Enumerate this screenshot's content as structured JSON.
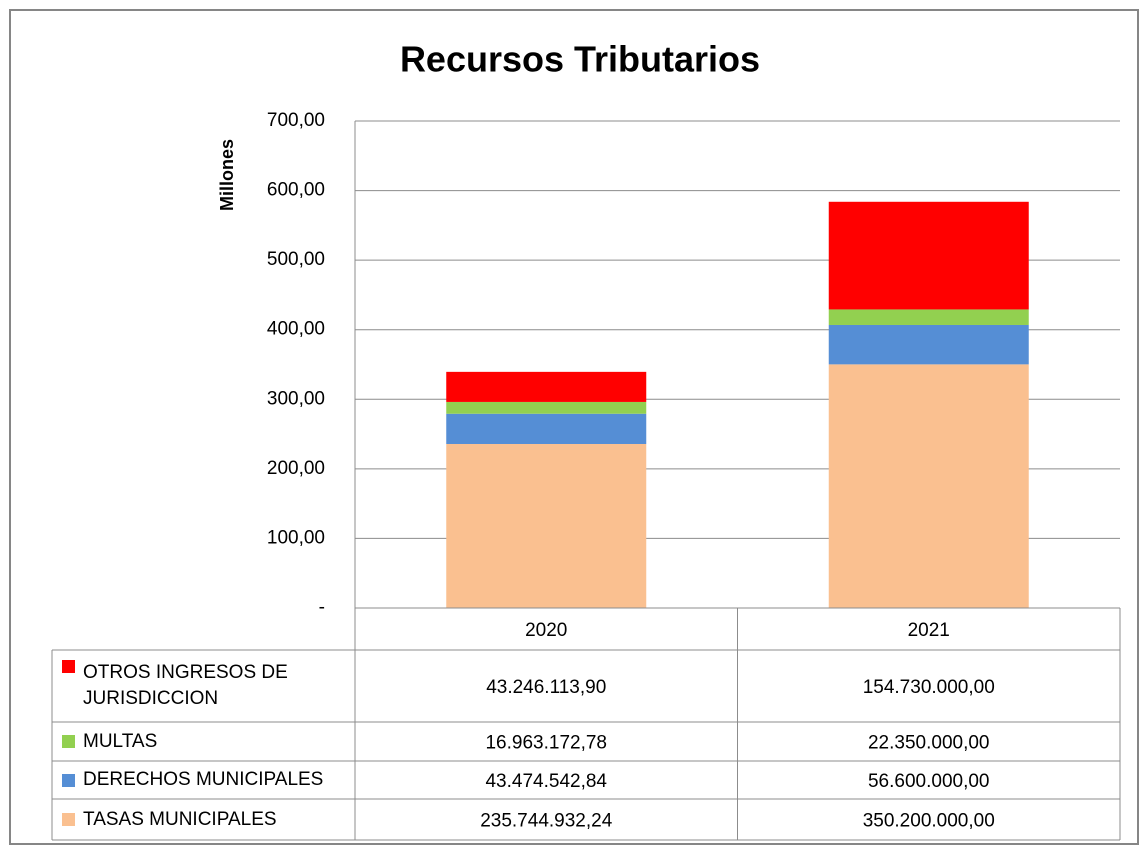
{
  "chart_data": {
    "type": "stacked_bar",
    "title": "Recursos Tributarios",
    "y_label": "Millones",
    "categories": [
      "2020",
      "2021"
    ],
    "series": [
      {
        "name": "OTROS INGRESOS DE JURISDICCION",
        "color": "#ff0000",
        "values": [
          43.2461139,
          154.73
        ],
        "value_labels": [
          "43.246.113,90",
          "154.730.000,00"
        ]
      },
      {
        "name": "MULTAS",
        "color": "#92d050",
        "values": [
          16.96317278,
          22.35
        ],
        "value_labels": [
          "16.963.172,78",
          "22.350.000,00"
        ]
      },
      {
        "name": "DERECHOS MUNICIPALES",
        "color": "#558ed5",
        "values": [
          43.47454284,
          56.6
        ],
        "value_labels": [
          "43.474.542,84",
          "56.600.000,00"
        ]
      },
      {
        "name": "TASAS MUNICIPALES",
        "color": "#fac090",
        "values": [
          235.74493224,
          350.2
        ],
        "value_labels": [
          "235.744.932,24",
          "350.200.000,00"
        ]
      }
    ],
    "ylim": [
      0,
      700
    ],
    "yticks": [
      {
        "value": 0,
        "label": "-"
      },
      {
        "value": 100,
        "label": "100,00"
      },
      {
        "value": 200,
        "label": "200,00"
      },
      {
        "value": 300,
        "label": "300,00"
      },
      {
        "value": 400,
        "label": "400,00"
      },
      {
        "value": 500,
        "label": "500,00"
      },
      {
        "value": 600,
        "label": "600,00"
      },
      {
        "value": 700,
        "label": "700,00"
      }
    ],
    "grid": true
  }
}
